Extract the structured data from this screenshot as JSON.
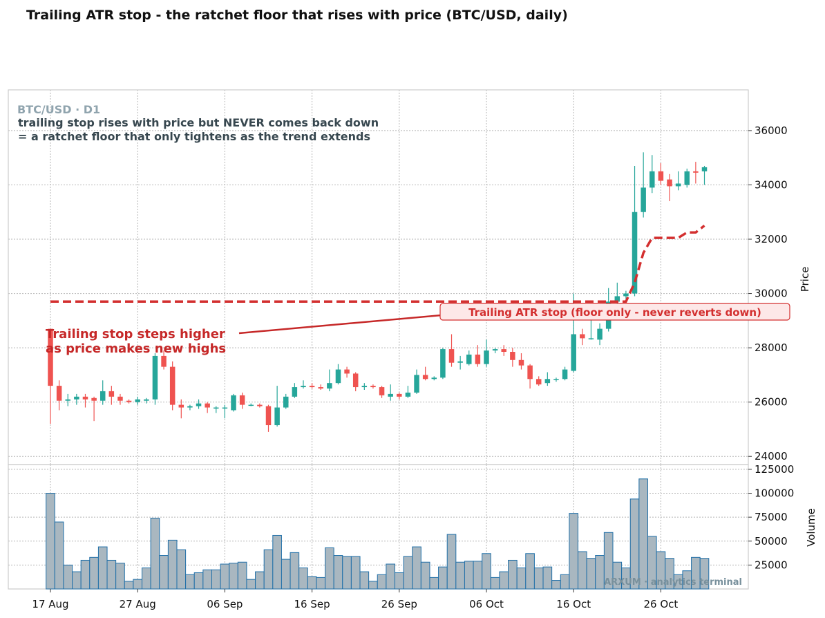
{
  "title": "Trailing ATR stop - the ratchet floor that rises with price  (BTC/USD, daily)",
  "panel_label": "BTC/USD · D1",
  "note_line1": "trailing stop rises with price but NEVER comes back down",
  "note_line2": "= a ratchet floor that only tightens as the trend extends",
  "annotation_line1": "Trailing stop steps higher",
  "annotation_line2": "as price makes new highs",
  "legend_box": "Trailing ATR stop (floor only - never reverts down)",
  "watermark": "ARXUM · analytics terminal",
  "colors": {
    "up": "#26a69a",
    "down": "#ef5350",
    "stop": "#d32f2f",
    "annotation": "#c62828",
    "volume_fill": "#a9b7c0",
    "volume_edge": "#1f6fa8",
    "label_gray": "#90a4ae",
    "note_dark": "#37474f"
  },
  "chart_data": [
    {
      "type": "candlestick",
      "ylabel": "Price",
      "ylim": [
        23700,
        37500
      ],
      "yticks": [
        24000,
        26000,
        28000,
        30000,
        32000,
        34000,
        36000
      ],
      "start_date": "2023-08-17",
      "xticks": [
        "17 Aug",
        "27 Aug",
        "06 Sep",
        "16 Sep",
        "26 Sep",
        "06 Oct",
        "16 Oct",
        "26 Oct"
      ],
      "grid": true,
      "candles": [
        {
          "o": 28700,
          "h": 28700,
          "l": 25200,
          "c": 26600
        },
        {
          "o": 26600,
          "h": 26800,
          "l": 25700,
          "c": 26050
        },
        {
          "o": 26050,
          "h": 26300,
          "l": 25850,
          "c": 26100
        },
        {
          "o": 26100,
          "h": 26300,
          "l": 25900,
          "c": 26200
        },
        {
          "o": 26200,
          "h": 26300,
          "l": 25800,
          "c": 26100
        },
        {
          "o": 26150,
          "h": 26200,
          "l": 25300,
          "c": 26050
        },
        {
          "o": 26050,
          "h": 26800,
          "l": 25900,
          "c": 26400
        },
        {
          "o": 26400,
          "h": 26600,
          "l": 25900,
          "c": 26200
        },
        {
          "o": 26200,
          "h": 26300,
          "l": 25900,
          "c": 26050
        },
        {
          "o": 26050,
          "h": 26100,
          "l": 25950,
          "c": 26000
        },
        {
          "o": 26000,
          "h": 26200,
          "l": 25900,
          "c": 26100
        },
        {
          "o": 26050,
          "h": 26150,
          "l": 25950,
          "c": 26100
        },
        {
          "o": 26100,
          "h": 27800,
          "l": 25900,
          "c": 27700
        },
        {
          "o": 27700,
          "h": 27900,
          "l": 27200,
          "c": 27300
        },
        {
          "o": 27300,
          "h": 27500,
          "l": 25700,
          "c": 25900
        },
        {
          "o": 25900,
          "h": 26100,
          "l": 25400,
          "c": 25800
        },
        {
          "o": 25800,
          "h": 25900,
          "l": 25700,
          "c": 25850
        },
        {
          "o": 25850,
          "h": 26100,
          "l": 25750,
          "c": 25950
        },
        {
          "o": 25950,
          "h": 26000,
          "l": 25600,
          "c": 25800
        },
        {
          "o": 25800,
          "h": 25850,
          "l": 25600,
          "c": 25800
        },
        {
          "o": 25800,
          "h": 25900,
          "l": 25400,
          "c": 25800
        },
        {
          "o": 25700,
          "h": 26300,
          "l": 25650,
          "c": 26250
        },
        {
          "o": 26250,
          "h": 26350,
          "l": 25750,
          "c": 25900
        },
        {
          "o": 25900,
          "h": 25950,
          "l": 25850,
          "c": 25900
        },
        {
          "o": 25900,
          "h": 25950,
          "l": 25800,
          "c": 25850
        },
        {
          "o": 25850,
          "h": 25900,
          "l": 24900,
          "c": 25150
        },
        {
          "o": 25150,
          "h": 26600,
          "l": 25100,
          "c": 25800
        },
        {
          "o": 25800,
          "h": 26300,
          "l": 25750,
          "c": 26200
        },
        {
          "o": 26200,
          "h": 26700,
          "l": 26150,
          "c": 26550
        },
        {
          "o": 26550,
          "h": 26800,
          "l": 26500,
          "c": 26600
        },
        {
          "o": 26600,
          "h": 26700,
          "l": 26500,
          "c": 26550
        },
        {
          "o": 26550,
          "h": 26650,
          "l": 26450,
          "c": 26500
        },
        {
          "o": 26500,
          "h": 27200,
          "l": 26400,
          "c": 26700
        },
        {
          "o": 26700,
          "h": 27400,
          "l": 26650,
          "c": 27200
        },
        {
          "o": 27200,
          "h": 27300,
          "l": 26900,
          "c": 27050
        },
        {
          "o": 27050,
          "h": 27100,
          "l": 26400,
          "c": 26550
        },
        {
          "o": 26550,
          "h": 26700,
          "l": 26450,
          "c": 26600
        },
        {
          "o": 26600,
          "h": 26650,
          "l": 26500,
          "c": 26550
        },
        {
          "o": 26550,
          "h": 26600,
          "l": 26150,
          "c": 26250
        },
        {
          "o": 26200,
          "h": 26650,
          "l": 26050,
          "c": 26300
        },
        {
          "o": 26300,
          "h": 26350,
          "l": 26100,
          "c": 26200
        },
        {
          "o": 26200,
          "h": 26600,
          "l": 26150,
          "c": 26350
        },
        {
          "o": 26350,
          "h": 27200,
          "l": 26300,
          "c": 27000
        },
        {
          "o": 27000,
          "h": 27300,
          "l": 26800,
          "c": 26850
        },
        {
          "o": 26850,
          "h": 26950,
          "l": 26800,
          "c": 26900
        },
        {
          "o": 26900,
          "h": 28000,
          "l": 26850,
          "c": 27950
        },
        {
          "o": 27950,
          "h": 28500,
          "l": 27300,
          "c": 27450
        },
        {
          "o": 27450,
          "h": 27700,
          "l": 27200,
          "c": 27500
        },
        {
          "o": 27400,
          "h": 27900,
          "l": 27350,
          "c": 27750
        },
        {
          "o": 27750,
          "h": 28100,
          "l": 27300,
          "c": 27400
        },
        {
          "o": 27400,
          "h": 28300,
          "l": 27300,
          "c": 27900
        },
        {
          "o": 27900,
          "h": 28000,
          "l": 27800,
          "c": 27950
        },
        {
          "o": 27950,
          "h": 28100,
          "l": 27700,
          "c": 27850
        },
        {
          "o": 27850,
          "h": 28000,
          "l": 27300,
          "c": 27550
        },
        {
          "o": 27550,
          "h": 27800,
          "l": 27200,
          "c": 27350
        },
        {
          "o": 27350,
          "h": 27400,
          "l": 26500,
          "c": 26850
        },
        {
          "o": 26850,
          "h": 26950,
          "l": 26600,
          "c": 26650
        },
        {
          "o": 26700,
          "h": 27100,
          "l": 26600,
          "c": 26850
        },
        {
          "o": 26850,
          "h": 26900,
          "l": 26750,
          "c": 26850
        },
        {
          "o": 26850,
          "h": 27300,
          "l": 26800,
          "c": 27200
        },
        {
          "o": 27150,
          "h": 30000,
          "l": 27100,
          "c": 28500
        },
        {
          "o": 28500,
          "h": 28700,
          "l": 28100,
          "c": 28350
        },
        {
          "o": 28350,
          "h": 29400,
          "l": 28300,
          "c": 28350
        },
        {
          "o": 28300,
          "h": 28900,
          "l": 28100,
          "c": 28700
        },
        {
          "o": 28700,
          "h": 30200,
          "l": 28600,
          "c": 29700
        },
        {
          "o": 29700,
          "h": 30400,
          "l": 29600,
          "c": 29900
        },
        {
          "o": 29900,
          "h": 30100,
          "l": 29800,
          "c": 30000
        },
        {
          "o": 30000,
          "h": 34700,
          "l": 29900,
          "c": 33000
        },
        {
          "o": 33000,
          "h": 35200,
          "l": 32800,
          "c": 33900
        },
        {
          "o": 33900,
          "h": 35100,
          "l": 33700,
          "c": 34500
        },
        {
          "o": 34500,
          "h": 34800,
          "l": 34000,
          "c": 34150
        },
        {
          "o": 34200,
          "h": 34400,
          "l": 33400,
          "c": 33950
        },
        {
          "o": 33950,
          "h": 34500,
          "l": 33800,
          "c": 34050
        },
        {
          "o": 34000,
          "h": 34600,
          "l": 33900,
          "c": 34500
        },
        {
          "o": 34500,
          "h": 34850,
          "l": 34050,
          "c": 34450
        },
        {
          "o": 34500,
          "h": 34700,
          "l": 34000,
          "c": 34650
        }
      ],
      "trailing_stop": [
        29700,
        29700,
        29700,
        29700,
        29700,
        29700,
        29700,
        29700,
        29700,
        29700,
        29700,
        29700,
        29700,
        29700,
        29700,
        29700,
        29700,
        29700,
        29700,
        29700,
        29700,
        29700,
        29700,
        29700,
        29700,
        29700,
        29700,
        29700,
        29700,
        29700,
        29700,
        29700,
        29700,
        29700,
        29700,
        29700,
        29700,
        29700,
        29700,
        29700,
        29700,
        29700,
        29700,
        29700,
        29700,
        29700,
        29700,
        29700,
        29700,
        29700,
        29700,
        29700,
        29700,
        29700,
        29700,
        29700,
        29700,
        29700,
        29700,
        29700,
        29700,
        29700,
        29700,
        29700,
        29700,
        29700,
        29700,
        30400,
        31500,
        32050,
        32050,
        32050,
        32050,
        32250,
        32250,
        32500
      ]
    },
    {
      "type": "bar",
      "ylabel": "Volume",
      "ylim": [
        0,
        130000
      ],
      "yticks": [
        25000,
        50000,
        75000,
        100000,
        125000
      ],
      "values": [
        100000,
        70000,
        25000,
        18000,
        30000,
        33000,
        44000,
        30000,
        27000,
        8000,
        10000,
        22000,
        74000,
        35000,
        51000,
        41000,
        15000,
        17000,
        20000,
        20000,
        26000,
        27000,
        28000,
        10000,
        18000,
        41000,
        56000,
        31000,
        38000,
        22000,
        13000,
        12000,
        43000,
        35000,
        34000,
        34000,
        18000,
        8000,
        15000,
        26000,
        17000,
        34000,
        44000,
        28000,
        12000,
        23000,
        57000,
        28000,
        29000,
        29000,
        37000,
        12000,
        18000,
        30000,
        22000,
        37000,
        22000,
        23000,
        9000,
        15000,
        79000,
        39000,
        32000,
        35000,
        59000,
        28000,
        22000,
        94000,
        115000,
        55000,
        39000,
        32000,
        15000,
        19000,
        33000,
        32000
      ]
    }
  ]
}
